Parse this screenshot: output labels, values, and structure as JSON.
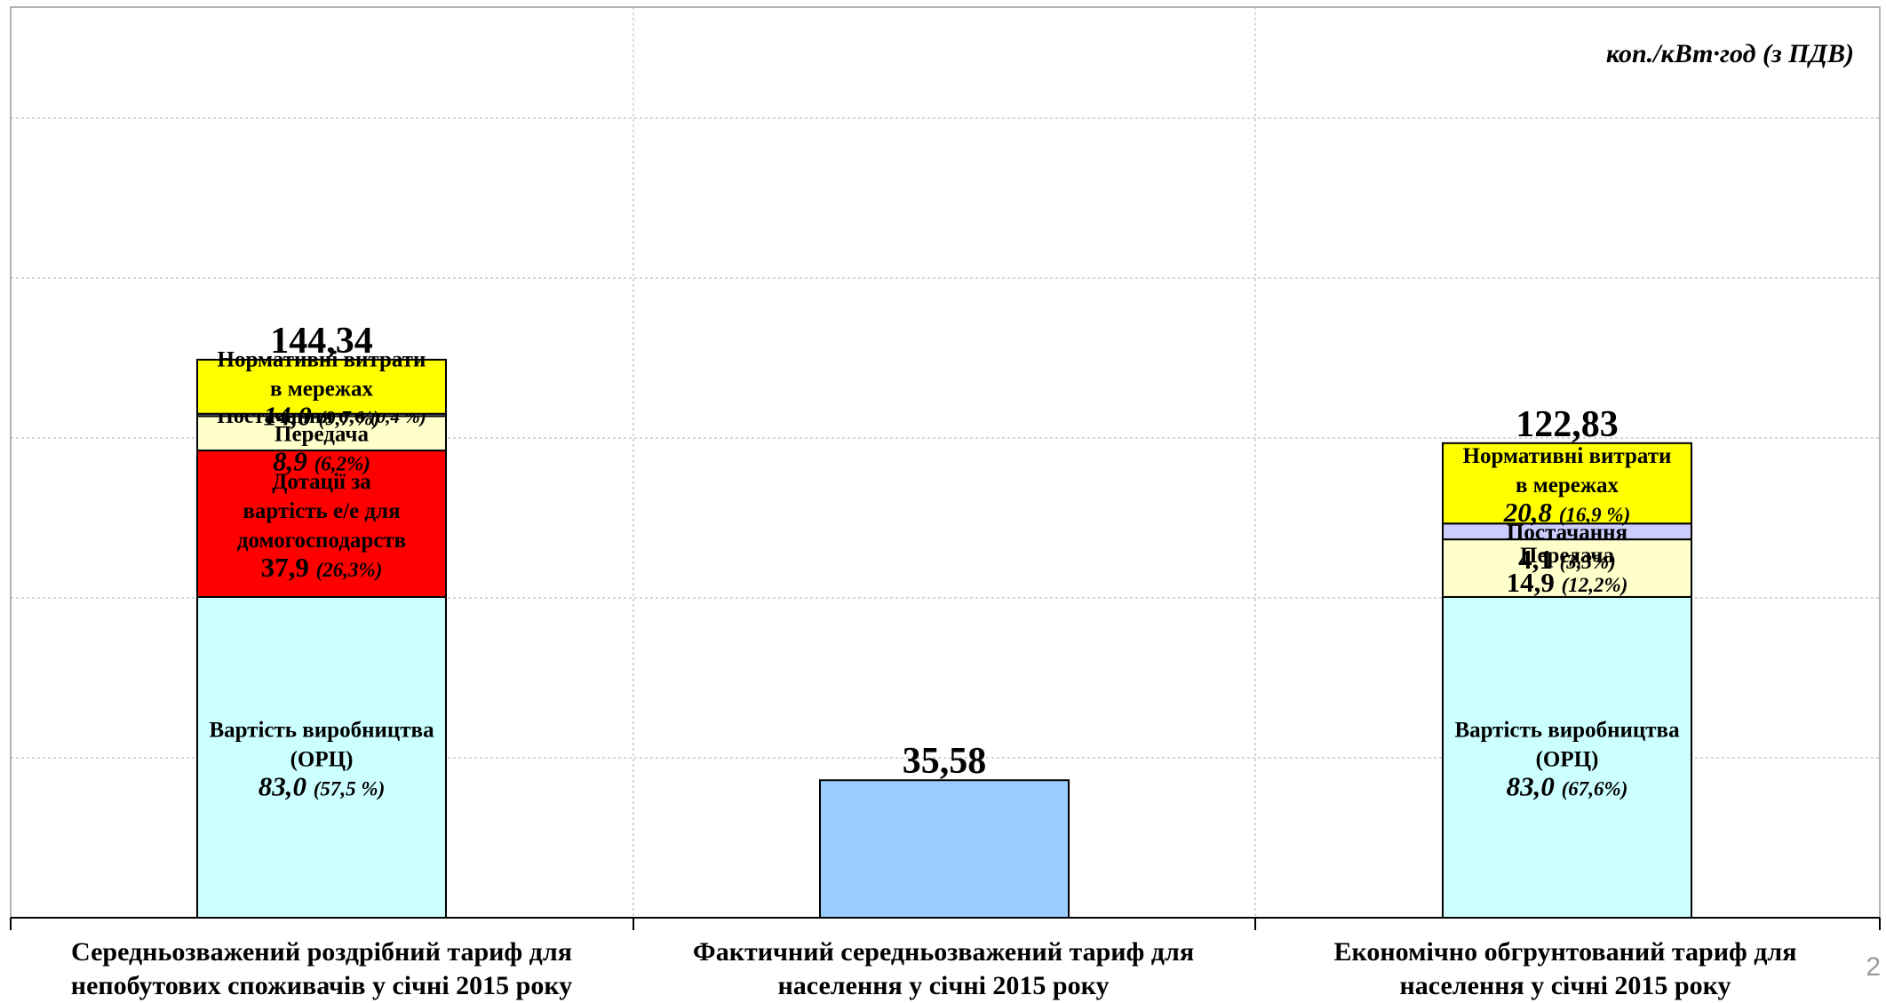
{
  "unit_label": "коп./кВт·год (з ПДВ)",
  "page_number": "2",
  "chart_data": {
    "type": "bar",
    "stacked": true,
    "ylim": [
      0,
      172
    ],
    "grid": true,
    "categories": [
      "Середньозважений роздрібний тариф для непобутових споживачів у січні 2015 року",
      "Фактичний середньозважений тариф для населення у січні 2015 року",
      "Економічно обгрунтований тариф для населення у січні 2015 року"
    ],
    "category_lines": [
      [
        "Середньозважений роздрібний тариф для",
        "непобутових споживачів у січні 2015 року"
      ],
      [
        "Фактичний середньозважений тариф для",
        "населення у січні 2015 року"
      ],
      [
        "Економічно обгрунтований тариф для",
        "населення у січні 2015 року"
      ]
    ],
    "totals": [
      "144,34",
      "35,58",
      "122,83"
    ],
    "bars": [
      {
        "segments": [
          {
            "value": 83.0,
            "color": "#ccffff",
            "lines": [
              "Вартість виробництва",
              "(ОРЦ)"
            ],
            "value_text": "83,0",
            "pct_text": "(57,5 %)",
            "value_italic": true
          },
          {
            "value": 37.9,
            "color": "#ff0000",
            "lines": [
              "Дотації за",
              "вартість е/е для",
              "домогосподарств"
            ],
            "value_text": "37,9",
            "pct_text": "(26,3%)",
            "value_italic": false
          },
          {
            "value": 8.9,
            "color": "#ffffcc",
            "lines": [
              "Передача"
            ],
            "value_text": "8,9",
            "pct_text": "(6,2%)",
            "value_italic": true
          },
          {
            "value": 0.6,
            "color": "#ccccff",
            "lines": [],
            "inline_text": "Постачання 0,6",
            "pct_text": "(0,4 %)"
          },
          {
            "value": 14.0,
            "color": "#ffff00",
            "lines": [
              "Нормативні витрати",
              "в мережах"
            ],
            "value_text": "14,0",
            "pct_text": "(9,7 %)",
            "value_italic": true
          }
        ]
      },
      {
        "segments": [
          {
            "value": 35.58,
            "color": "#99ccff",
            "lines": [],
            "value_text": "",
            "pct_text": ""
          }
        ]
      },
      {
        "segments": [
          {
            "value": 83.0,
            "color": "#ccffff",
            "lines": [
              "Вартість виробництва",
              "(ОРЦ)"
            ],
            "value_text": "83,0",
            "pct_text": "(67,6%)",
            "value_italic": true
          },
          {
            "value": 14.9,
            "color": "#ffffcc",
            "lines": [
              "Передача"
            ],
            "value_text": "14,9",
            "pct_text": "(12,2%)",
            "value_italic": false
          },
          {
            "value": 4.1,
            "color": "#ccccff",
            "lines": [
              "Постачання"
            ],
            "value_text": "4,1",
            "pct_text": "(3,3%)",
            "value_italic": false
          },
          {
            "value": 20.8,
            "color": "#ffff00",
            "lines": [
              "Нормативні витрати",
              "в мережах"
            ],
            "value_text": "20,8",
            "pct_text": "(16,9 %)",
            "value_italic": true
          }
        ]
      }
    ]
  }
}
